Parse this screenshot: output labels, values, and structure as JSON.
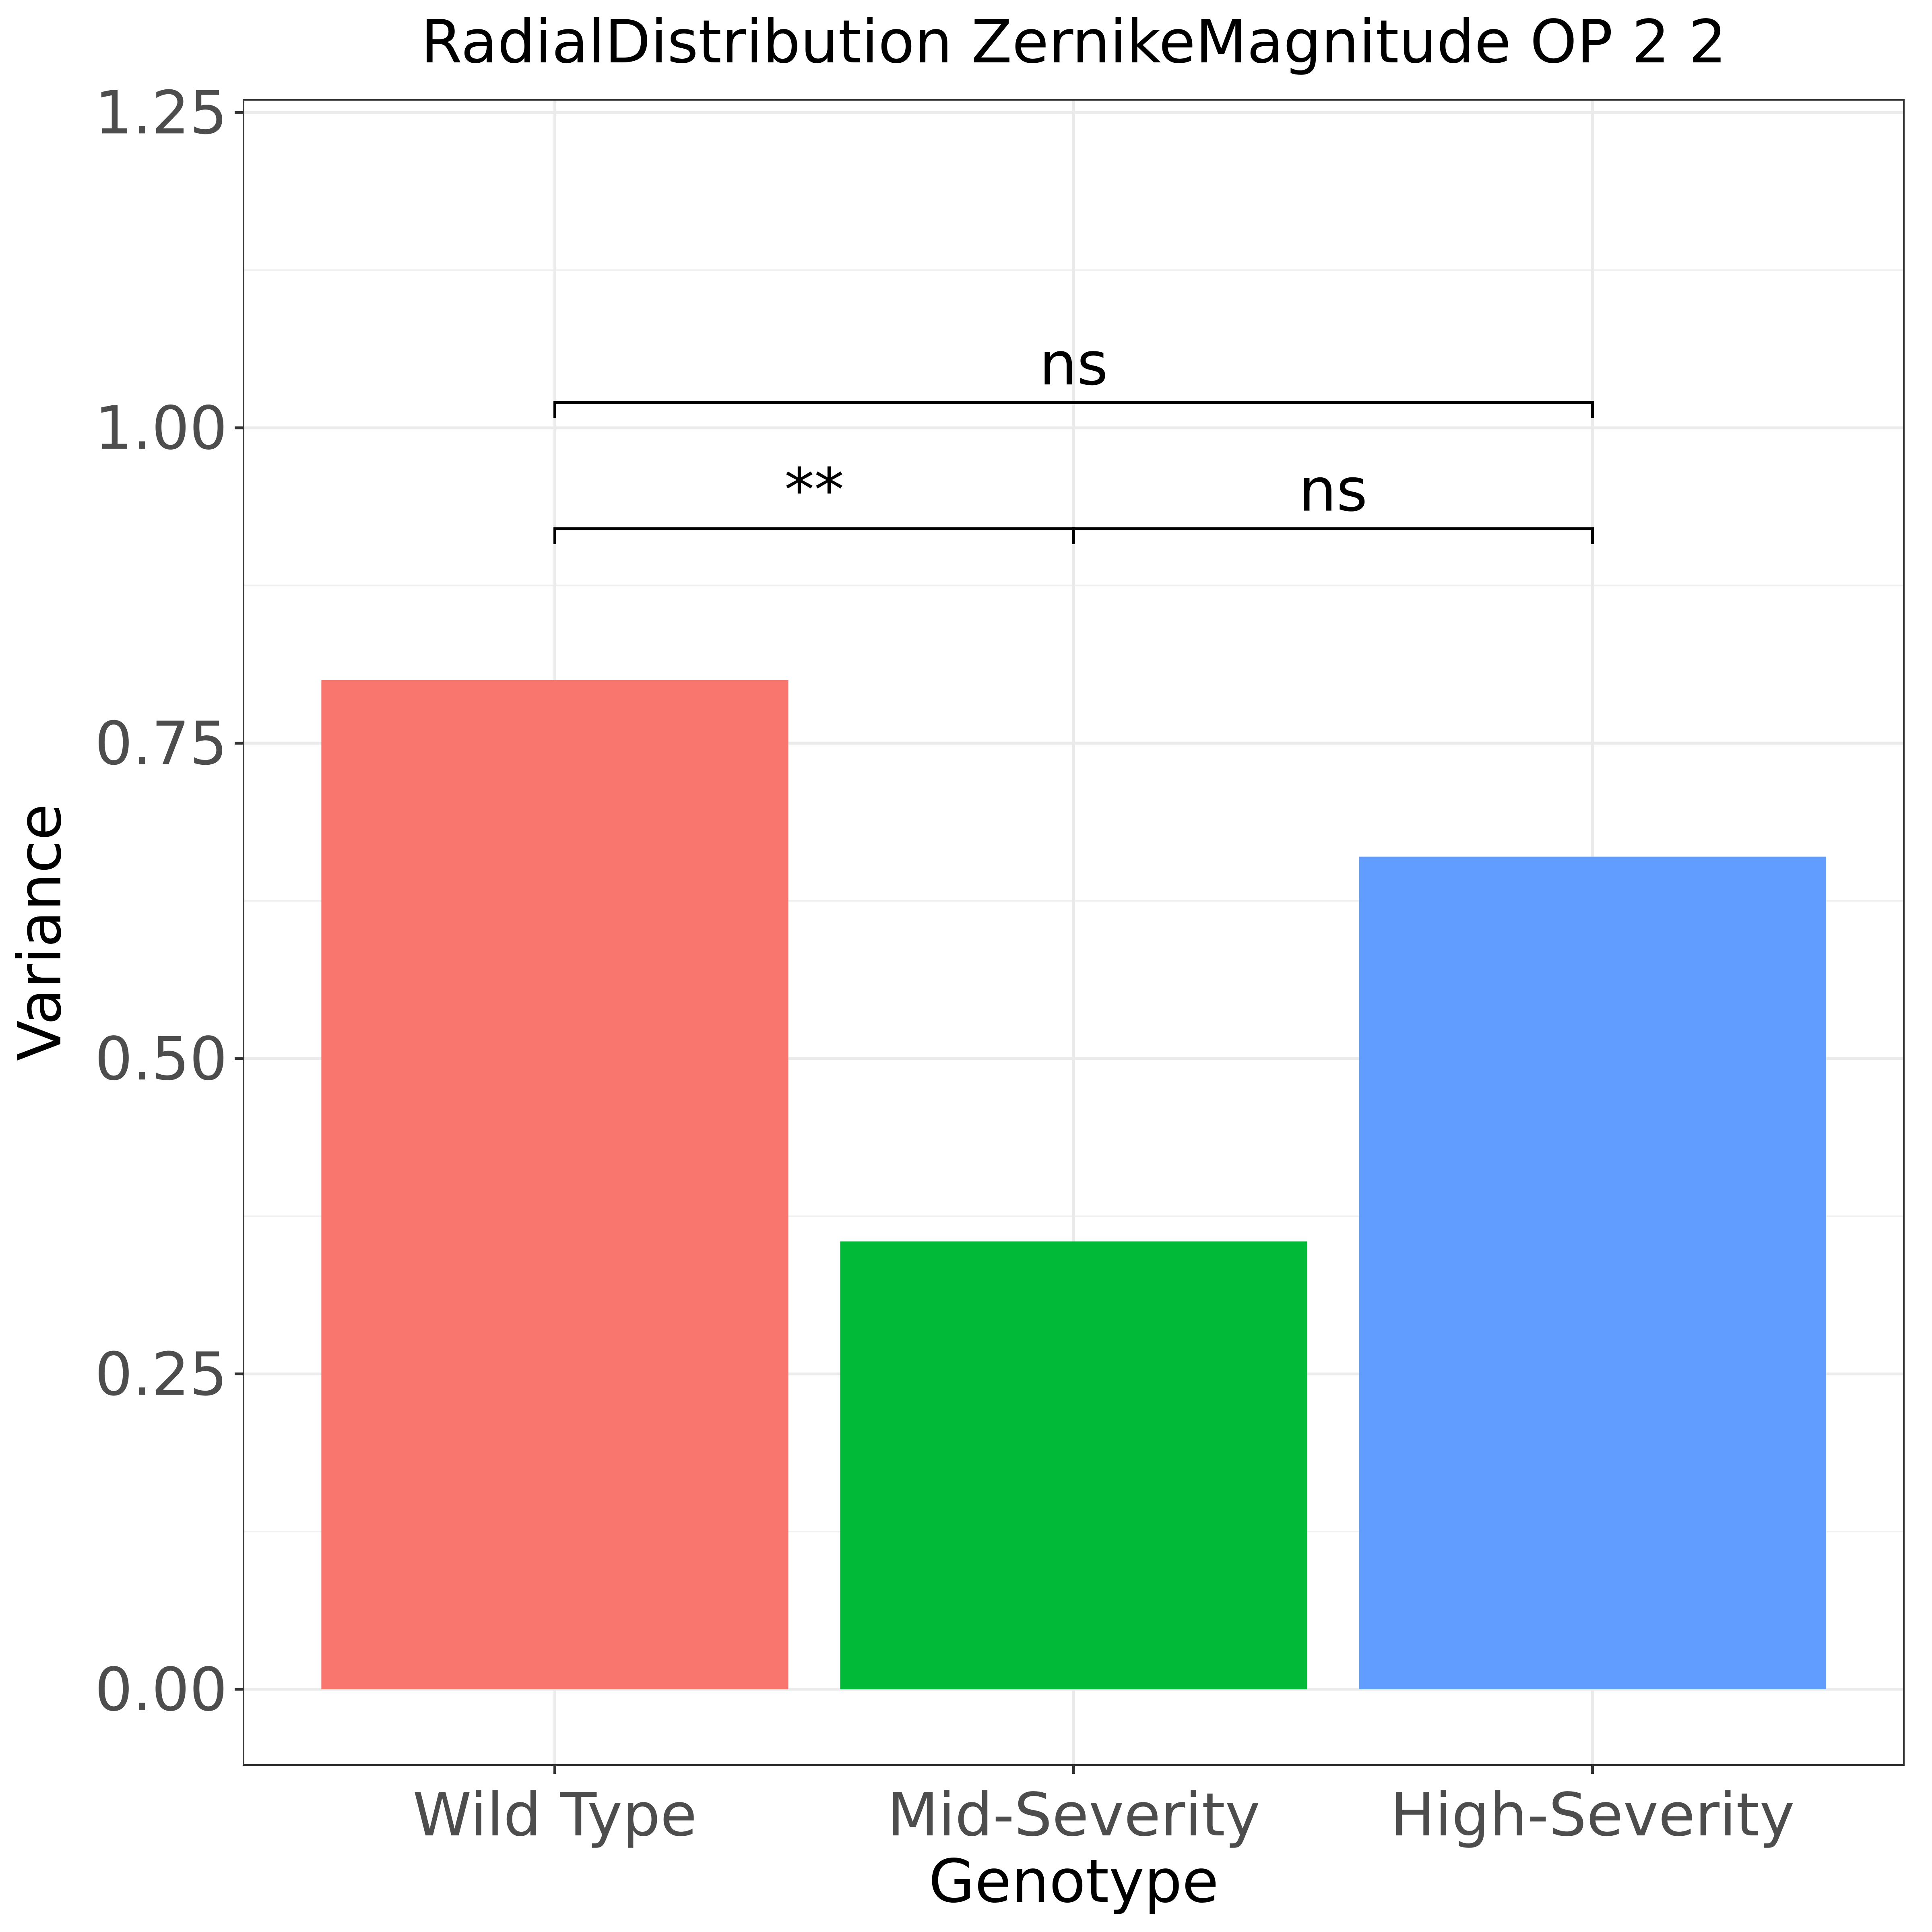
{
  "chart_data": {
    "type": "bar",
    "title": "RadialDistribution ZernikeMagnitude OP 2 2",
    "xlabel": "Genotype",
    "ylabel": "Variance",
    "categories": [
      "Wild Type",
      "Mid-Severity",
      "High-Severity"
    ],
    "values": [
      0.8,
      0.355,
      0.66
    ],
    "colors": [
      "#f8766d",
      "#00ba38",
      "#619cff"
    ],
    "ylim": [
      -0.06,
      1.26
    ],
    "yticks": [
      0.0,
      0.25,
      0.5,
      0.75,
      1.0,
      1.25
    ],
    "ytick_labels": [
      "0.00",
      "0.25",
      "0.50",
      "0.75",
      "1.00",
      "1.25"
    ],
    "grid": true,
    "legend": "none",
    "annotations": [
      {
        "from": "Wild Type",
        "to": "Mid-Severity",
        "y": 0.92,
        "label": "**"
      },
      {
        "from": "Mid-Severity",
        "to": "High-Severity",
        "y": 0.92,
        "label": "ns"
      },
      {
        "from": "Wild Type",
        "to": "High-Severity",
        "y": 1.02,
        "label": "ns"
      }
    ]
  }
}
